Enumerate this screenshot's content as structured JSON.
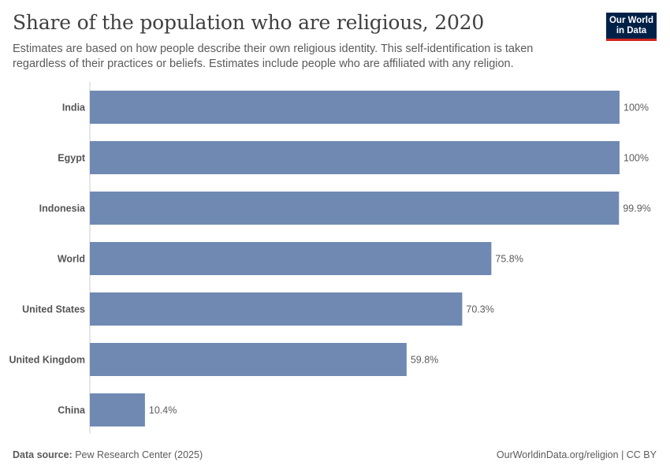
{
  "header": {
    "title": "Share of the population who are religious, 2020",
    "subtitle": "Estimates are based on how people describe their own religious identity. This self-identification is taken regardless of their practices or beliefs. Estimates include people who are affiliated with any religion."
  },
  "logo": {
    "line1": "Our World",
    "line2": "in Data"
  },
  "footer": {
    "source_label": "Data source:",
    "source_value": "Pew Research Center (2025)",
    "url_license": "OurWorldinData.org/religion | CC BY"
  },
  "colors": {
    "bar": "#6f89b2",
    "axis": "#cccccc",
    "label": "#555555",
    "value": "#5b5b5b"
  },
  "chart_data": {
    "type": "bar",
    "orientation": "horizontal",
    "categories": [
      "India",
      "Egypt",
      "Indonesia",
      "World",
      "United States",
      "United Kingdom",
      "China"
    ],
    "values": [
      100,
      100,
      99.9,
      75.8,
      70.3,
      59.8,
      10.4
    ],
    "value_labels": [
      "100%",
      "100%",
      "99.9%",
      "75.8%",
      "70.3%",
      "59.8%",
      "10.4%"
    ],
    "xlim": [
      0,
      100
    ],
    "unit": "%",
    "grid": false
  }
}
